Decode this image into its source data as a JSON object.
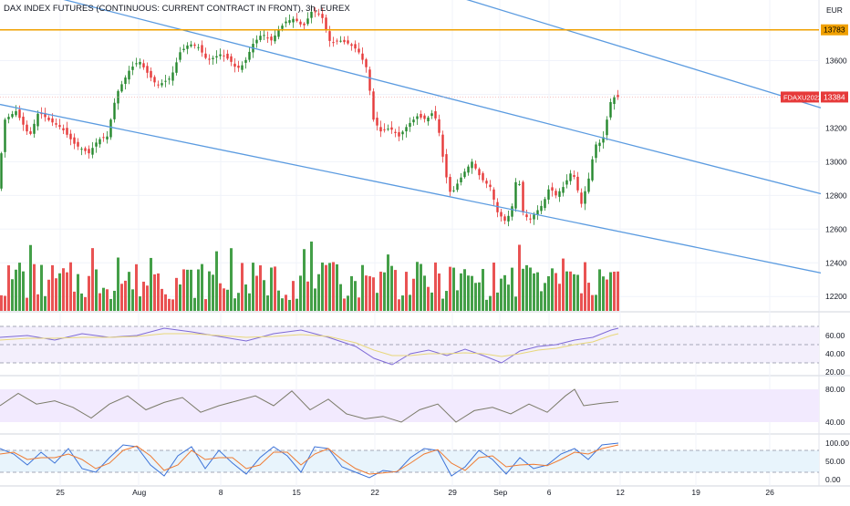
{
  "title": "DAX INDEX FUTURES (CONTINUOUS: CURRENT CONTRACT IN FRONT), 3h, EUREX",
  "currency": "EUR",
  "colors": {
    "up": "#26892f",
    "down": "#e63a3a",
    "volume_up": "#3a9a3e",
    "volume_down": "#e84a4a",
    "channel": "#5b9be0",
    "level": "#f0a000",
    "rsi": "#7e6ad6",
    "rsi_ma": "#e8d77a",
    "osc": "#7a7a68",
    "stoch_k": "#3d73d8",
    "stoch_d": "#ef7b32",
    "rsi_band": "#f3effc",
    "osc_band": "#f2eafe",
    "stoch_band": "#e8f4fc"
  },
  "chart_data": [
    {
      "type": "candlestick",
      "name": "price",
      "x_labels": [
        "25",
        "Aug",
        "8",
        "15",
        "22",
        "29",
        "Sep",
        "6",
        "12",
        "19",
        "26"
      ],
      "y_ticks": [
        "13600",
        "13400",
        "13200",
        "13000",
        "12800",
        "12600",
        "12400",
        "12200"
      ],
      "ylim": [
        12120,
        13960
      ],
      "horizontal_level": {
        "value": 13783,
        "label": "13783"
      },
      "price_label": {
        "series": "FDAXU2022",
        "value": "13384"
      },
      "close_path": [
        [
          0,
          12850
        ],
        [
          8,
          13250
        ],
        [
          20,
          13300
        ],
        [
          35,
          13150
        ],
        [
          45,
          13300
        ],
        [
          55,
          13250
        ],
        [
          70,
          13200
        ],
        [
          85,
          13100
        ],
        [
          100,
          13050
        ],
        [
          110,
          13130
        ],
        [
          120,
          13150
        ],
        [
          130,
          13400
        ],
        [
          145,
          13550
        ],
        [
          155,
          13600
        ],
        [
          165,
          13520
        ],
        [
          175,
          13450
        ],
        [
          190,
          13500
        ],
        [
          200,
          13650
        ],
        [
          210,
          13700
        ],
        [
          220,
          13680
        ],
        [
          230,
          13600
        ],
        [
          245,
          13640
        ],
        [
          255,
          13600
        ],
        [
          262,
          13550
        ],
        [
          270,
          13580
        ],
        [
          280,
          13700
        ],
        [
          290,
          13760
        ],
        [
          300,
          13720
        ],
        [
          315,
          13830
        ],
        [
          325,
          13850
        ],
        [
          335,
          13800
        ],
        [
          345,
          13900
        ],
        [
          355,
          13870
        ],
        [
          365,
          13700
        ],
        [
          375,
          13720
        ],
        [
          385,
          13700
        ],
        [
          395,
          13660
        ],
        [
          405,
          13550
        ],
        [
          412,
          13250
        ],
        [
          420,
          13180
        ],
        [
          430,
          13200
        ],
        [
          440,
          13150
        ],
        [
          450,
          13220
        ],
        [
          460,
          13270
        ],
        [
          470,
          13250
        ],
        [
          478,
          13300
        ],
        [
          485,
          13150
        ],
        [
          490,
          12950
        ],
        [
          497,
          12800
        ],
        [
          505,
          12880
        ],
        [
          513,
          12950
        ],
        [
          520,
          13000
        ],
        [
          530,
          12900
        ],
        [
          540,
          12850
        ],
        [
          548,
          12700
        ],
        [
          556,
          12650
        ],
        [
          563,
          12700
        ],
        [
          570,
          12950
        ],
        [
          576,
          12700
        ],
        [
          583,
          12650
        ],
        [
          590,
          12700
        ],
        [
          598,
          12750
        ],
        [
          605,
          12850
        ],
        [
          612,
          12800
        ],
        [
          620,
          12850
        ],
        [
          630,
          12950
        ],
        [
          640,
          12750
        ],
        [
          648,
          12900
        ],
        [
          655,
          13100
        ],
        [
          663,
          13120
        ],
        [
          668,
          13250
        ],
        [
          673,
          13380
        ],
        [
          679,
          13384
        ]
      ],
      "channel_lines": [
        {
          "name": "upper",
          "from": [
            0,
            14810
          ],
          "to": [
            900,
            13320
          ]
        },
        {
          "name": "middle",
          "from": [
            0,
            14060
          ],
          "to": [
            900,
            12810
          ]
        },
        {
          "name": "lower",
          "from": [
            0,
            13340
          ],
          "to": [
            900,
            12340
          ]
        }
      ]
    },
    {
      "type": "line",
      "name": "rsi",
      "y_ticks": [
        "60.00",
        "40.00",
        "20.00"
      ],
      "ylim": [
        20,
        80
      ],
      "bands": [
        70,
        50,
        30
      ],
      "x": [
        0,
        30,
        60,
        90,
        120,
        150,
        180,
        210,
        240,
        270,
        300,
        330,
        360,
        390,
        410,
        430,
        450,
        470,
        490,
        510,
        530,
        550,
        570,
        590,
        610,
        630,
        650,
        670,
        678
      ],
      "series": [
        {
          "values": [
            58,
            60,
            55,
            62,
            58,
            60,
            68,
            64,
            59,
            54,
            62,
            66,
            58,
            48,
            35,
            28,
            40,
            44,
            38,
            45,
            38,
            30,
            43,
            48,
            50,
            55,
            58,
            66,
            68
          ]
        },
        {
          "values": [
            55,
            57,
            57,
            58,
            58,
            59,
            62,
            62,
            60,
            58,
            59,
            61,
            59,
            52,
            44,
            38,
            38,
            40,
            40,
            41,
            40,
            37,
            40,
            44,
            46,
            50,
            53,
            60,
            62
          ]
        }
      ]
    },
    {
      "type": "line",
      "name": "oscillator",
      "y_ticks": [
        "80.00",
        "40.00"
      ],
      "ylim": [
        30,
        90
      ],
      "x": [
        0,
        20,
        40,
        60,
        80,
        100,
        120,
        140,
        160,
        180,
        200,
        220,
        240,
        260,
        280,
        300,
        320,
        340,
        360,
        380,
        400,
        420,
        440,
        460,
        480,
        500,
        520,
        540,
        560,
        580,
        600,
        620,
        630,
        640,
        660,
        678
      ],
      "series": [
        {
          "values": [
            60,
            75,
            62,
            66,
            58,
            45,
            62,
            72,
            55,
            64,
            70,
            52,
            60,
            66,
            72,
            60,
            78,
            55,
            68,
            50,
            44,
            47,
            40,
            55,
            62,
            40,
            54,
            58,
            50,
            62,
            52,
            72,
            80,
            60,
            63,
            65
          ]
        }
      ]
    },
    {
      "type": "line",
      "name": "stochastic",
      "y_ticks": [
        "100.00",
        "50.00",
        "0.00"
      ],
      "ylim": [
        -10,
        110
      ],
      "bands": [
        80,
        20
      ],
      "x": [
        0,
        15,
        30,
        45,
        60,
        75,
        90,
        105,
        120,
        135,
        150,
        165,
        180,
        195,
        210,
        225,
        240,
        255,
        270,
        285,
        300,
        315,
        330,
        345,
        360,
        375,
        390,
        405,
        420,
        435,
        450,
        465,
        480,
        495,
        510,
        525,
        540,
        555,
        570,
        585,
        600,
        615,
        630,
        645,
        660,
        678
      ],
      "series": [
        {
          "name": "K",
          "values": [
            85,
            70,
            40,
            75,
            45,
            85,
            30,
            20,
            60,
            95,
            90,
            40,
            10,
            65,
            90,
            30,
            80,
            45,
            15,
            60,
            90,
            65,
            20,
            90,
            85,
            35,
            20,
            5,
            25,
            20,
            60,
            85,
            80,
            10,
            35,
            80,
            55,
            15,
            60,
            30,
            40,
            70,
            85,
            55,
            95,
            100
          ]
        },
        {
          "name": "D",
          "values": [
            70,
            75,
            55,
            60,
            60,
            70,
            55,
            30,
            45,
            80,
            92,
            65,
            25,
            40,
            80,
            55,
            60,
            60,
            30,
            40,
            75,
            75,
            40,
            70,
            85,
            55,
            30,
            15,
            18,
            22,
            45,
            70,
            82,
            45,
            25,
            60,
            65,
            35,
            40,
            42,
            38,
            55,
            75,
            70,
            85,
            95
          ]
        }
      ]
    }
  ]
}
